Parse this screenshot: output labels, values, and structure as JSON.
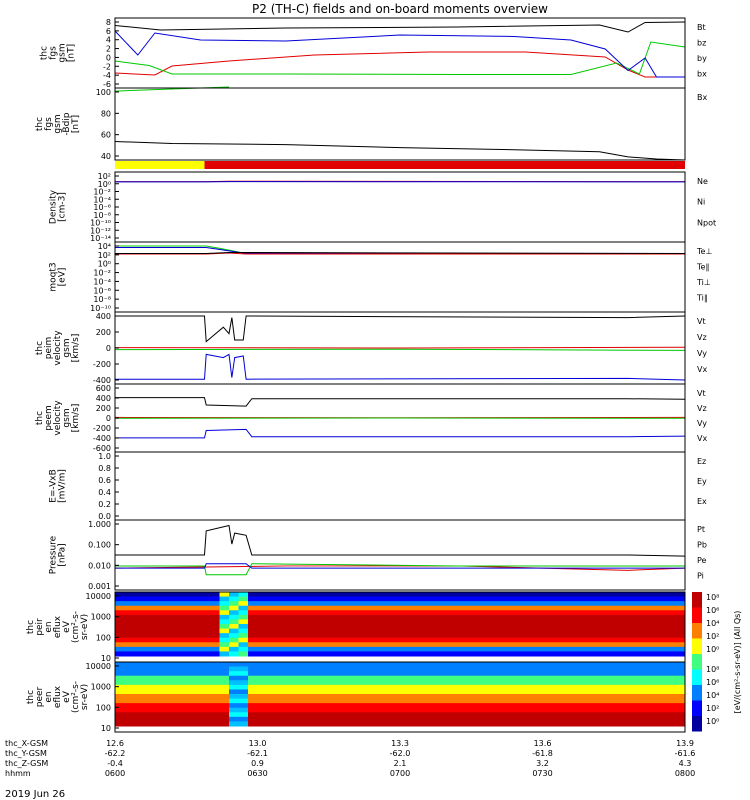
{
  "title": "P2 (TH-C) fields and on-board moments overview",
  "colors": {
    "black": "#000000",
    "red": "#e00000",
    "green": "#00c800",
    "blue": "#0000d8",
    "yellow": "#ffff00"
  },
  "chart_data": [
    {
      "type": "line",
      "panel": "fgs",
      "ylabel": [
        "thc",
        "fgs",
        "gsm",
        "[nT]"
      ],
      "ylim": [
        -6,
        8
      ],
      "ticks": [
        "8",
        "6",
        "4",
        "2",
        "0",
        "-2",
        "-4",
        "-6"
      ],
      "legend": [
        "Bt",
        "bz",
        "by",
        "bx"
      ],
      "series": [
        {
          "name": "Bt",
          "color": "#000000",
          "x": [
            0,
            0.08,
            0.3,
            0.6,
            0.85,
            0.9,
            0.93,
            1.0
          ],
          "y": [
            6.5,
            5.6,
            6.0,
            6.2,
            6.6,
            5.2,
            7.1,
            7.2
          ]
        },
        {
          "name": "bz",
          "color": "#e00000",
          "x": [
            0,
            0.07,
            0.1,
            0.2,
            0.35,
            0.55,
            0.72,
            0.86,
            0.9,
            0.93,
            1.0
          ],
          "y": [
            -3.0,
            -3.4,
            -1.6,
            -0.6,
            0.6,
            1.2,
            1.2,
            0.2,
            -2.4,
            -3.8,
            -3.8
          ]
        },
        {
          "name": "by",
          "color": "#00c800",
          "x": [
            0,
            0.06,
            0.1,
            0.3,
            0.6,
            0.8,
            0.88,
            0.92,
            0.94,
            1.0
          ],
          "y": [
            -0.6,
            -1.5,
            -3.2,
            -3.2,
            -3.3,
            -3.3,
            -1.0,
            -3.2,
            3.2,
            2.2
          ]
        },
        {
          "name": "bx",
          "color": "#0000d8",
          "x": [
            0,
            0.04,
            0.07,
            0.15,
            0.3,
            0.5,
            0.7,
            0.8,
            0.86,
            0.9,
            0.93,
            0.95,
            1.0
          ],
          "y": [
            5.4,
            0.6,
            5.0,
            3.6,
            3.4,
            4.6,
            4.3,
            3.6,
            1.8,
            -2.5,
            0.0,
            -3.8,
            -3.8
          ]
        }
      ]
    },
    {
      "type": "line",
      "panel": "fgs_bx",
      "ylabel": [
        "thc",
        "fgs",
        "gsm",
        "-Bdip",
        "[nT]"
      ],
      "ylim": [
        30,
        100
      ],
      "ticks": [
        "100",
        "80",
        "60",
        "40"
      ],
      "legend": [
        "Bx"
      ],
      "series": [
        {
          "name": "Bx",
          "color": "#000000",
          "x": [
            0,
            0.1,
            0.3,
            0.5,
            0.7,
            0.85,
            0.9,
            0.95,
            1.0
          ],
          "y": [
            48,
            46,
            45,
            42,
            40,
            38,
            33,
            31,
            30
          ]
        },
        {
          "name": "green",
          "color": "#00c800",
          "x": [
            0,
            0.1,
            0.2
          ],
          "y": [
            97,
            99,
            101
          ]
        }
      ]
    },
    {
      "type": "bar",
      "panel": "mode_bar",
      "segments": [
        {
          "x0": 0,
          "x1": 0.157,
          "color": "#ffff00"
        },
        {
          "x0": 0.157,
          "x1": 1.0,
          "color": "#e00000"
        }
      ]
    },
    {
      "type": "line",
      "panel": "density",
      "ylabel": [
        "Density",
        "[cm-3]"
      ],
      "ylim": [
        -14,
        2
      ],
      "log": true,
      "ticks": [
        "10²",
        "10⁰",
        "10⁻²",
        "10⁻⁴",
        "10⁻⁶",
        "10⁻⁸",
        "10⁻¹⁰",
        "10⁻¹²",
        "10⁻¹⁴"
      ],
      "legend": [
        "Ne",
        "Ni",
        "Npot"
      ],
      "series": [
        {
          "name": "Ne",
          "color": "#e00000",
          "x": [
            0,
            0.16,
            0.2,
            1.0
          ],
          "y": [
            -0.2,
            -0.2,
            -0.1,
            -0.2
          ]
        },
        {
          "name": "Npot",
          "color": "#0000d8",
          "x": [
            0,
            0.16,
            0.2,
            1.0
          ],
          "y": [
            -0.25,
            -0.25,
            -0.2,
            -0.25
          ]
        }
      ]
    },
    {
      "type": "line",
      "panel": "temperature",
      "ylabel": [
        "moqt3",
        "[eV]"
      ],
      "ylim": [
        -10,
        4
      ],
      "log": true,
      "ticks": [
        "10⁴",
        "10²",
        "10⁰",
        "10⁻²",
        "10⁻⁴",
        "10⁻⁶",
        "10⁻⁸",
        "10⁻¹⁰"
      ],
      "legend": [
        "Te⊥",
        "Te∥",
        "Ti⊥",
        "Ti∥"
      ],
      "series": [
        {
          "name": "Ti∥",
          "color": "#00c800",
          "x": [
            0,
            0.16,
            0.19,
            0.23,
            1.0
          ],
          "y": [
            3.2,
            3.2,
            2.6,
            1.7,
            1.7
          ]
        },
        {
          "name": "Ti⊥",
          "color": "#0000d8",
          "x": [
            0,
            0.16,
            0.19,
            0.23,
            1.0
          ],
          "y": [
            2.9,
            2.9,
            2.4,
            1.7,
            1.7
          ]
        },
        {
          "name": "Te⊥",
          "color": "#e00000",
          "x": [
            0,
            0.16,
            0.2,
            0.23,
            1.0
          ],
          "y": [
            1.6,
            1.6,
            1.8,
            1.6,
            1.6
          ]
        },
        {
          "name": "Te∥",
          "color": "#000000",
          "x": [
            0,
            0.16,
            0.2,
            1.0
          ],
          "y": [
            1.7,
            1.7,
            1.9,
            1.7
          ]
        }
      ]
    },
    {
      "type": "line",
      "panel": "peim_velocity",
      "ylabel": [
        "thc",
        "peim",
        "velocity",
        "gsm",
        "[km/s]"
      ],
      "ylim": [
        -450,
        450
      ],
      "ticks": [
        "400",
        "200",
        "0",
        "-200",
        "-400"
      ],
      "legend": [
        "Vt",
        "Vz",
        "Vy",
        "Vx"
      ],
      "series": [
        {
          "name": "Vt",
          "color": "#000000",
          "x": [
            0,
            0.157,
            0.16,
            0.19,
            0.2,
            0.205,
            0.21,
            0.225,
            0.23,
            0.9,
            1.0
          ],
          "y": [
            400,
            400,
            80,
            260,
            180,
            380,
            100,
            100,
            400,
            380,
            400
          ]
        },
        {
          "name": "Vz",
          "color": "#e00000",
          "x": [
            0,
            0.5,
            1.0
          ],
          "y": [
            5,
            0,
            10
          ]
        },
        {
          "name": "Vy",
          "color": "#00c800",
          "x": [
            0,
            0.5,
            1.0
          ],
          "y": [
            -20,
            -15,
            -30
          ]
        },
        {
          "name": "Vx",
          "color": "#0000d8",
          "x": [
            0,
            0.157,
            0.16,
            0.19,
            0.2,
            0.205,
            0.21,
            0.225,
            0.23,
            0.9,
            1.0
          ],
          "y": [
            -390,
            -390,
            -80,
            -120,
            -80,
            -370,
            -120,
            -100,
            -390,
            -380,
            -400
          ]
        }
      ]
    },
    {
      "type": "line",
      "panel": "peem_velocity",
      "ylabel": [
        "thc",
        "peem",
        "velocity",
        "gsm",
        "[km/s]"
      ],
      "ylim": [
        -600,
        600
      ],
      "ticks": [
        "600",
        "400",
        "200",
        "0",
        "-200",
        "-400",
        "-600"
      ],
      "legend": [
        "Vt",
        "Vz",
        "Vy",
        "Vx"
      ],
      "series": [
        {
          "name": "Vt",
          "color": "#000000",
          "x": [
            0,
            0.157,
            0.16,
            0.23,
            0.24,
            0.9,
            1.0
          ],
          "y": [
            360,
            360,
            230,
            210,
            340,
            340,
            330
          ]
        },
        {
          "name": "Vz",
          "color": "#e00000",
          "x": [
            0,
            0.5,
            1.0
          ],
          "y": [
            10,
            5,
            10
          ]
        },
        {
          "name": "Vy",
          "color": "#00c800",
          "x": [
            0,
            0.5,
            1.0
          ],
          "y": [
            -5,
            0,
            -5
          ]
        },
        {
          "name": "Vx",
          "color": "#0000d8",
          "x": [
            0,
            0.157,
            0.16,
            0.23,
            0.24,
            0.9,
            1.0
          ],
          "y": [
            -350,
            -350,
            -220,
            -200,
            -330,
            -330,
            -320
          ]
        }
      ]
    },
    {
      "type": "line",
      "panel": "efield",
      "ylabel": [
        "E=-VxB",
        "[mV/m]"
      ],
      "ylim": [
        0,
        1
      ],
      "ticks": [
        "1.0",
        "0.8",
        "0.6",
        "0.4",
        "0.2",
        "0.0"
      ],
      "legend": [
        "Ez",
        "Ey",
        "Ex"
      ],
      "series": []
    },
    {
      "type": "line",
      "panel": "pressure",
      "ylabel": [
        "Pressure",
        "[nPa]"
      ],
      "ylim": [
        -3,
        0.2
      ],
      "log": true,
      "ticks": [
        "1.000",
        "0.100",
        "0.010",
        "0.001"
      ],
      "legend": [
        "Pt",
        "Pb",
        "Pe",
        "Pi"
      ],
      "series": [
        {
          "name": "Pt",
          "color": "#000000",
          "x": [
            0,
            0.157,
            0.16,
            0.2,
            0.205,
            0.21,
            0.23,
            0.24,
            0.9,
            1.0
          ],
          "y": [
            -1.4,
            -1.4,
            -0.3,
            -0.05,
            -0.9,
            -0.4,
            -0.5,
            -1.4,
            -1.4,
            -1.45
          ]
        },
        {
          "name": "Pb",
          "color": "#e00000",
          "x": [
            0,
            0.3,
            0.6,
            0.9,
            1.0
          ],
          "y": [
            -2.0,
            -1.9,
            -1.9,
            -2.1,
            -2.0
          ]
        },
        {
          "name": "Pe",
          "color": "#00c800",
          "x": [
            0,
            0.157,
            0.16,
            0.23,
            0.24,
            0.6,
            1.0
          ],
          "y": [
            -1.9,
            -1.9,
            -2.3,
            -2.3,
            -1.8,
            -1.9,
            -1.9
          ]
        },
        {
          "name": "Pi",
          "color": "#0000d8",
          "x": [
            0,
            0.157,
            0.16,
            0.23,
            0.24,
            0.6,
            1.0
          ],
          "y": [
            -2.0,
            -2.0,
            -1.8,
            -1.8,
            -2.0,
            -2.0,
            -2.0
          ]
        }
      ]
    },
    {
      "type": "heatmap",
      "panel": "peir",
      "ylabel": [
        "thc",
        "peir",
        "en",
        "eflux",
        "eV",
        "(cm²-s-",
        "sr-eV)"
      ],
      "ylim": [
        5,
        15000
      ],
      "log": true,
      "ticks": [
        "10000",
        "1000",
        "100",
        "10"
      ]
    },
    {
      "type": "heatmap",
      "panel": "peer",
      "ylabel": [
        "thc",
        "peer",
        "en",
        "eflux",
        "eV",
        "(cm²-s-",
        "sr-eV)"
      ],
      "ylim": [
        5,
        15000
      ],
      "log": true,
      "ticks": [
        "10000",
        "1000",
        "100",
        "10"
      ]
    }
  ],
  "colorbar": {
    "ticks": [
      "10⁸",
      "10⁶",
      "10⁴",
      "10²",
      "10⁰"
    ],
    "ticks2": [
      "10⁸",
      "10⁶",
      "10⁴",
      "10²",
      "10⁰"
    ],
    "label": "[eV/(cm²-s-sr-eV)] (All Qs)"
  },
  "x_axis": {
    "rows": [
      {
        "label": "thc_X-GSM",
        "values": [
          "12.6",
          "13.0",
          "13.3",
          "13.6",
          "13.9"
        ]
      },
      {
        "label": "thc_Y-GSM",
        "values": [
          "-62.2",
          "-62.1",
          "-62.0",
          "-61.8",
          "-61.6"
        ]
      },
      {
        "label": "thc_Z-GSM",
        "values": [
          "-0.4",
          "0.9",
          "2.1",
          "3.2",
          "4.3"
        ]
      },
      {
        "label": "hhmm",
        "values": [
          "0600",
          "0630",
          "0700",
          "0730",
          "0800"
        ]
      }
    ],
    "date": "2019 Jun 26"
  }
}
